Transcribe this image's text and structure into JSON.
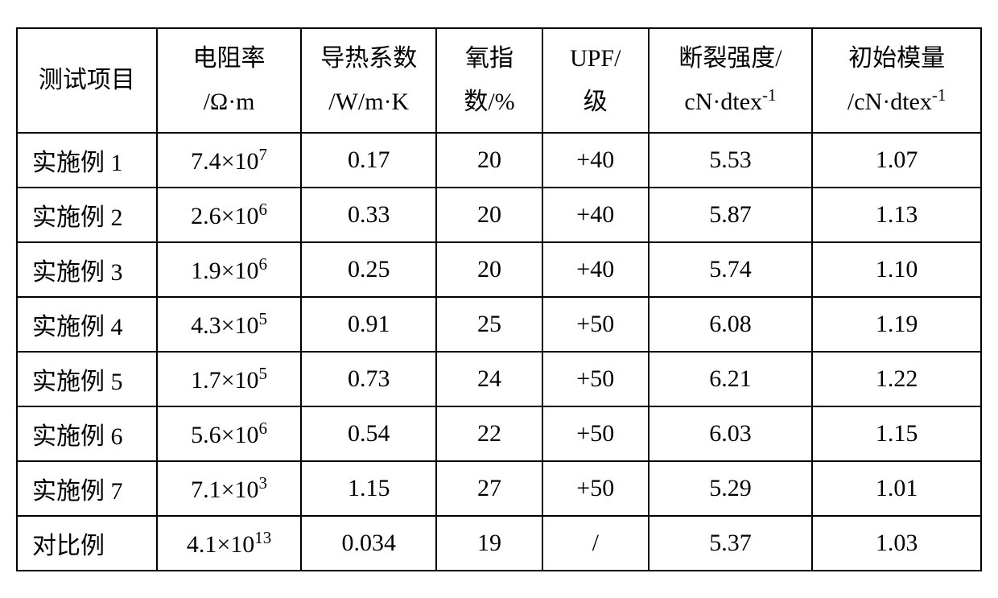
{
  "table": {
    "columns": [
      {
        "label": "测试项目",
        "width": "14.5%"
      },
      {
        "label": "电阻率<br>/Ω·m",
        "width": "15%"
      },
      {
        "label": "导热系数<br>/W/m·K",
        "width": "14%"
      },
      {
        "label": "氧指<br>数/%",
        "width": "11%"
      },
      {
        "label": "UPF/<br>级",
        "width": "11%"
      },
      {
        "label": "断裂强度/<br>cN·dtex<sup>-1</sup>",
        "width": "17%"
      },
      {
        "label": "初始模量<br>/cN·dtex<sup>-1</sup>",
        "width": "17.5%"
      }
    ],
    "rows": [
      {
        "label": "实施例 1",
        "resistivity": "7.4×10<sup>7</sup>",
        "thermal": "0.17",
        "oxygen": "20",
        "upf": "+40",
        "strength": "5.53",
        "modulus": "1.07"
      },
      {
        "label": "实施例 2",
        "resistivity": "2.6×10<sup>6</sup>",
        "thermal": "0.33",
        "oxygen": "20",
        "upf": "+40",
        "strength": "5.87",
        "modulus": "1.13"
      },
      {
        "label": "实施例 3",
        "resistivity": "1.9×10<sup>6</sup>",
        "thermal": "0.25",
        "oxygen": "20",
        "upf": "+40",
        "strength": "5.74",
        "modulus": "1.10"
      },
      {
        "label": "实施例 4",
        "resistivity": "4.3×10<sup>5</sup>",
        "thermal": "0.91",
        "oxygen": "25",
        "upf": "+50",
        "strength": "6.08",
        "modulus": "1.19"
      },
      {
        "label": "实施例 5",
        "resistivity": "1.7×10<sup>5</sup>",
        "thermal": "0.73",
        "oxygen": "24",
        "upf": "+50",
        "strength": "6.21",
        "modulus": "1.22"
      },
      {
        "label": "实施例 6",
        "resistivity": "5.6×10<sup>6</sup>",
        "thermal": "0.54",
        "oxygen": "22",
        "upf": "+50",
        "strength": "6.03",
        "modulus": "1.15"
      },
      {
        "label": "实施例 7",
        "resistivity": "7.1×10<sup>3</sup>",
        "thermal": "1.15",
        "oxygen": "27",
        "upf": "+50",
        "strength": "5.29",
        "modulus": "1.01"
      },
      {
        "label": "对比例",
        "resistivity": "4.1×10<sup>13</sup>",
        "thermal": "0.034",
        "oxygen": "19",
        "upf": "/",
        "strength": "5.37",
        "modulus": "1.03"
      }
    ],
    "border_color": "#000000",
    "background_color": "#ffffff",
    "text_color": "#000000",
    "header_fontsize": 30,
    "cell_fontsize": 30,
    "font_family": "SimSun"
  }
}
